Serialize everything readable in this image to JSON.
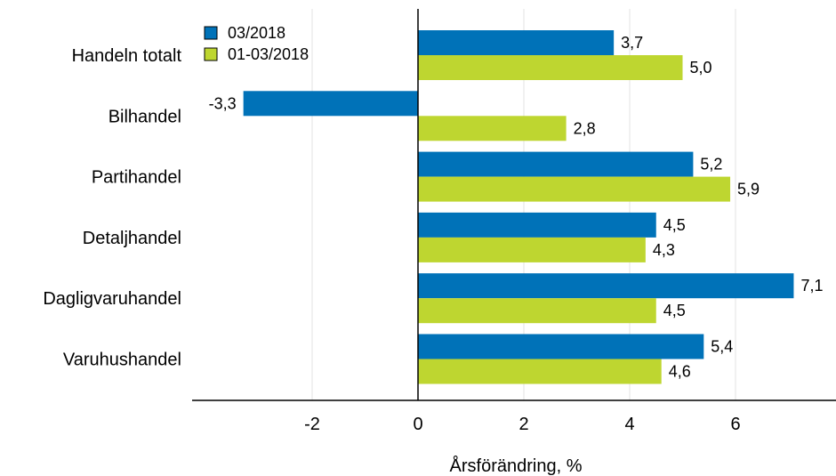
{
  "chart_data": {
    "type": "bar",
    "orientation": "horizontal",
    "categories": [
      "Handeln totalt",
      "Bilhandel",
      "Partihandel",
      "Detaljhandel",
      "Dagligvaruhandel",
      "Varuhushandel"
    ],
    "series": [
      {
        "name": "03/2018",
        "color": "#0072b8",
        "values": [
          3.7,
          -3.3,
          5.2,
          4.5,
          7.1,
          5.4
        ],
        "labels": [
          "3,7",
          "-3,3",
          "5,2",
          "4,5",
          "7,1",
          "5,4"
        ]
      },
      {
        "name": "01-03/2018",
        "color": "#bed630",
        "values": [
          5.0,
          2.8,
          5.9,
          4.3,
          4.5,
          4.6
        ],
        "labels": [
          "5,0",
          "2,8",
          "5,9",
          "4,3",
          "4,5",
          "4,6"
        ]
      }
    ],
    "xlim": [
      -4.2,
      7.4
    ],
    "xticks": [
      -2,
      0,
      2,
      4,
      6
    ],
    "xtick_labels": [
      "-2",
      "0",
      "2",
      "4",
      "6"
    ],
    "xlabel": "Årsförändring, %",
    "ylabel": "",
    "title": "",
    "grid": "vertical",
    "legend": "top-left"
  }
}
